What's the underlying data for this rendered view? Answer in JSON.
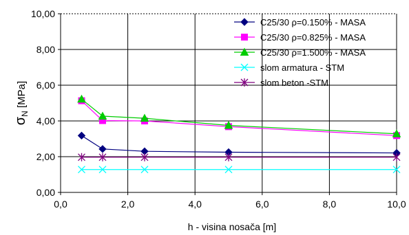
{
  "chart_data": {
    "type": "line",
    "xlabel": "h - visina nosača [m]",
    "ylabel": "σN [MPa]",
    "ylabel_main": "σ",
    "ylabel_sub": "N",
    "ylabel_unit": " [MPa]",
    "xlim": [
      0,
      10
    ],
    "ylim": [
      0,
      10
    ],
    "x_ticks": [
      0,
      2,
      4,
      6,
      8,
      10
    ],
    "y_ticks": [
      0,
      2,
      4,
      6,
      8,
      10
    ],
    "x_tick_labels": [
      "0,0",
      "2,0",
      "4,0",
      "6,0",
      "8,0",
      "10,0"
    ],
    "y_tick_labels": [
      "0,00",
      "2,00",
      "4,00",
      "6,00",
      "8,00",
      "10,00"
    ],
    "grid": true,
    "legend_position": "top-right",
    "series": [
      {
        "name": "C25/30 ρ=0.150% - MASA",
        "color": "#000080",
        "marker": "diamond",
        "x": [
          0.625,
          1.25,
          2.5,
          5,
          10
        ],
        "y": [
          3.18,
          2.43,
          2.3,
          2.25,
          2.21
        ]
      },
      {
        "name": "C25/30 ρ=0.825% - MASA",
        "color": "#ff00ff",
        "marker": "square",
        "x": [
          0.625,
          1.25,
          2.5,
          5,
          10
        ],
        "y": [
          5.13,
          4.02,
          4.0,
          3.68,
          3.18
        ]
      },
      {
        "name": "C25/30 ρ=1.500% - MASA",
        "color": "#00cc00",
        "marker": "triangle",
        "x": [
          0.625,
          1.25,
          2.5,
          5,
          10
        ],
        "y": [
          5.22,
          4.27,
          4.15,
          3.75,
          3.28
        ]
      },
      {
        "name": "slom armatura - STM",
        "color": "#00ffff",
        "marker": "x",
        "x": [
          0.625,
          1.25,
          2.5,
          5,
          10
        ],
        "y": [
          1.28,
          1.28,
          1.28,
          1.28,
          1.28
        ]
      },
      {
        "name": "slom beton -STM",
        "color": "#800080",
        "marker": "star",
        "x": [
          0.625,
          1.25,
          2.5,
          5,
          10
        ],
        "y": [
          1.97,
          1.97,
          1.97,
          1.97,
          1.97
        ]
      }
    ]
  }
}
